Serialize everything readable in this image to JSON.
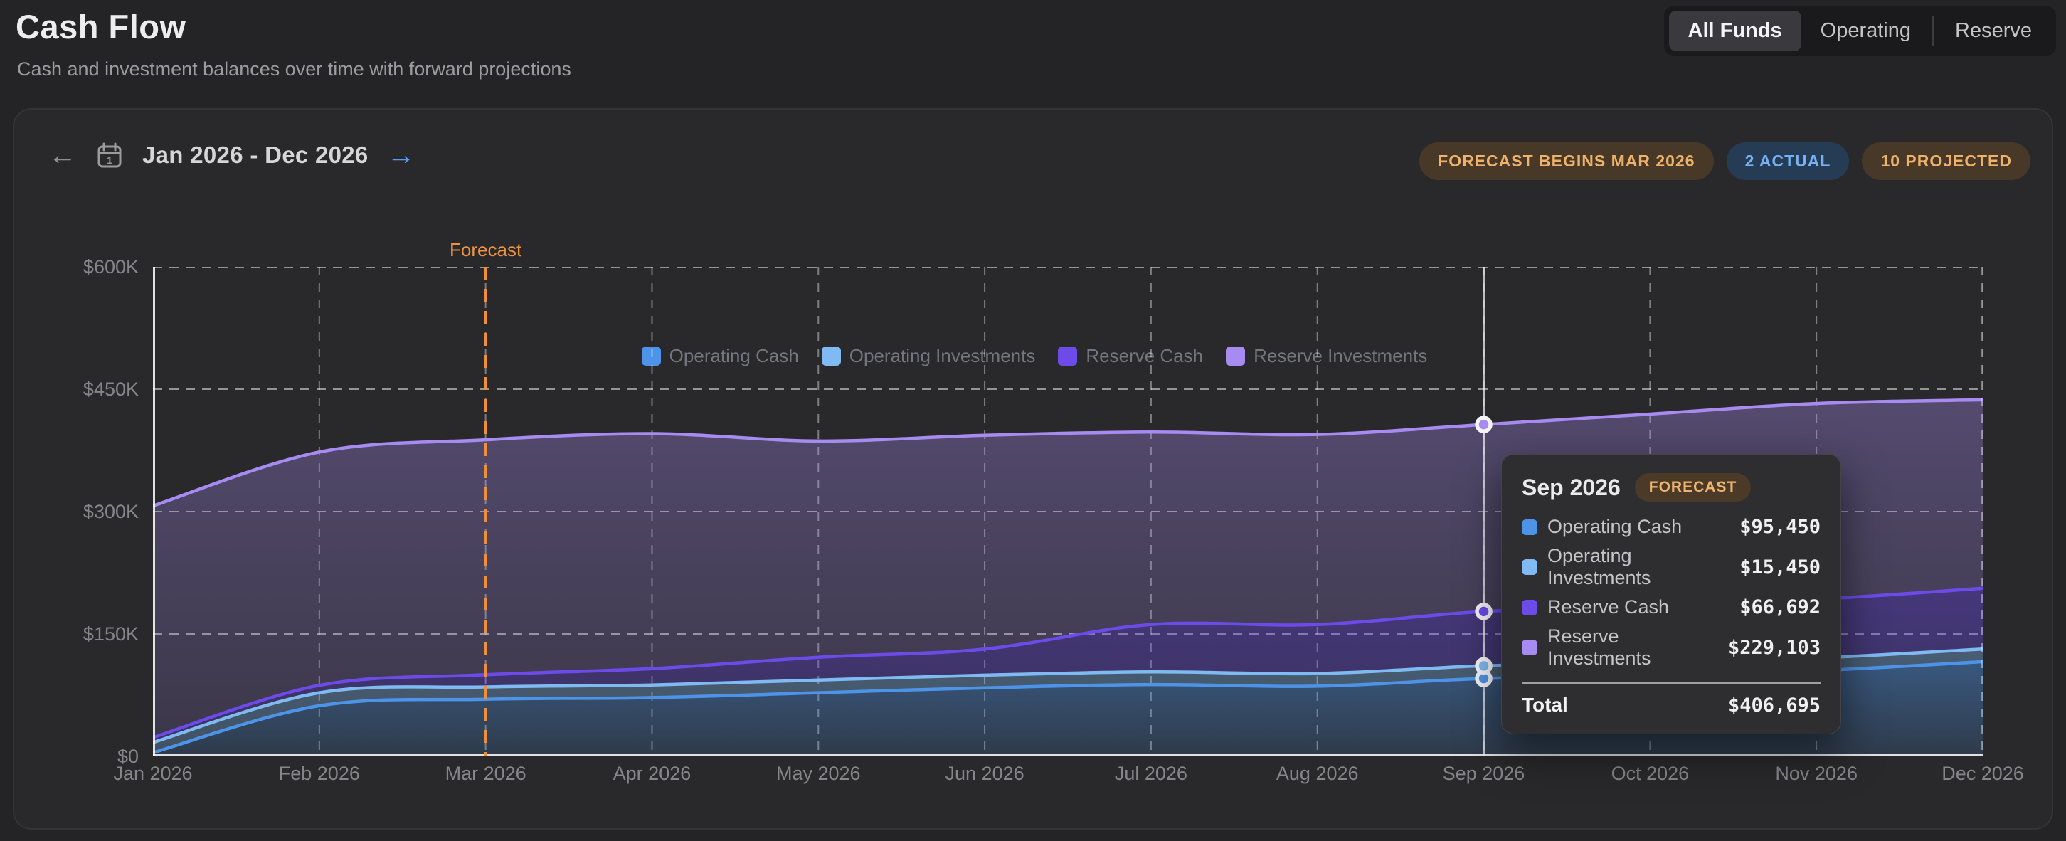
{
  "header": {
    "title": "Cash Flow",
    "subtitle": "Cash and investment balances over time with forward projections"
  },
  "funds_toggle": {
    "options": [
      {
        "label": "All Funds",
        "active": true
      },
      {
        "label": "Operating",
        "active": false
      },
      {
        "label": "Reserve",
        "active": false
      }
    ]
  },
  "date_nav": {
    "prev_icon": "back-arrow",
    "calendar_icon": "calendar",
    "range_label": "Jan 2026 - Dec 2026",
    "next_icon": "forward-arrow"
  },
  "badges": [
    {
      "label": "FORECAST BEGINS MAR 2026",
      "style": "orange"
    },
    {
      "label": "2 ACTUAL",
      "style": "blue"
    },
    {
      "label": "10 PROJECTED",
      "style": "orange"
    }
  ],
  "chart_data": {
    "type": "area",
    "stacked": true,
    "grid": true,
    "legend_position": "top",
    "x": [
      "Jan 2026",
      "Feb 2026",
      "Mar 2026",
      "Apr 2026",
      "May 2026",
      "Jun 2026",
      "Jul 2026",
      "Aug 2026",
      "Sep 2026",
      "Oct 2026",
      "Nov 2026",
      "Dec 2026"
    ],
    "ylim": [
      0,
      600000
    ],
    "y_ticks": [
      {
        "value": 0,
        "label": "$0"
      },
      {
        "value": 150000,
        "label": "$150K"
      },
      {
        "value": 300000,
        "label": "$300K"
      },
      {
        "value": 450000,
        "label": "$450K"
      },
      {
        "value": 600000,
        "label": "$600K"
      }
    ],
    "series": [
      {
        "name": "Operating Cash",
        "color": "#4D94E9",
        "fill_alpha_top": 0.44,
        "fill_alpha_bottom": 0.16,
        "values": [
          4500,
          62000,
          70000,
          72000,
          78000,
          84000,
          88000,
          86000,
          95450,
          99000,
          105000,
          116000
        ]
      },
      {
        "name": "Operating Investments",
        "color": "#7FBAF2",
        "fill_alpha_top": 0.36,
        "fill_alpha_bottom": 0.28,
        "values": [
          12500,
          16000,
          15000,
          15500,
          15500,
          15500,
          15500,
          15500,
          15450,
          15500,
          15500,
          15500
        ]
      },
      {
        "name": "Reserve Cash",
        "color": "#6C4BE8",
        "fill_alpha_top": 0.42,
        "fill_alpha_bottom": 0.26,
        "values": [
          6000,
          9000,
          15000,
          20000,
          28000,
          32000,
          58000,
          60000,
          66692,
          70000,
          72000,
          74500
        ]
      },
      {
        "name": "Reserve Investments",
        "color": "#A78BF0",
        "fill_alpha_top": 0.34,
        "fill_alpha_bottom": 0.15,
        "values": [
          284000,
          286000,
          288000,
          288000,
          265000,
          262000,
          236000,
          233000,
          229103,
          235000,
          240000,
          231000
        ]
      }
    ],
    "forecast": {
      "start_index": 2,
      "line_color": "#EF8F3C",
      "label": "Forecast"
    },
    "hover_index": 8,
    "tooltip": {
      "title": "Sep 2026",
      "badge": "FORECAST",
      "rows": [
        {
          "name": "Operating Cash",
          "value": "$95,450"
        },
        {
          "name": "Operating Investments",
          "value": "$15,450"
        },
        {
          "name": "Reserve Cash",
          "value": "$66,692"
        },
        {
          "name": "Reserve Investments",
          "value": "$229,103"
        }
      ],
      "total_label": "Total",
      "total_value": "$406,695"
    }
  }
}
